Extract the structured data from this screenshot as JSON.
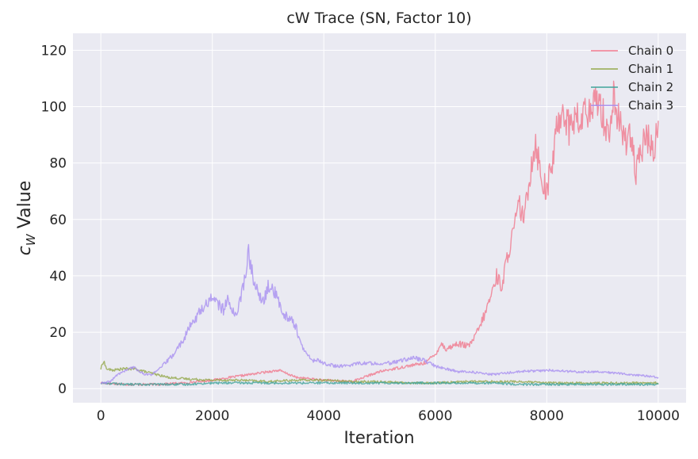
{
  "chart_data": {
    "type": "line",
    "title": "cW Trace (SN, Factor 10)",
    "xlabel": "Iteration",
    "ylabel": "c",
    "ylabel_sub": "W",
    "ylabel_rest": " Value",
    "xlim": [
      -500,
      10500
    ],
    "ylim": [
      -5,
      126
    ],
    "xticks": [
      0,
      2000,
      4000,
      6000,
      8000,
      10000
    ],
    "yticks": [
      0,
      20,
      40,
      60,
      80,
      100,
      120
    ],
    "grid": true,
    "legend_position": "top-right",
    "series": [
      {
        "name": "Chain 0",
        "color": "#f0788c",
        "points": [
          [
            0,
            2
          ],
          [
            500,
            1.5
          ],
          [
            1000,
            1.5
          ],
          [
            1500,
            2
          ],
          [
            2000,
            3
          ],
          [
            2500,
            4.5
          ],
          [
            3000,
            6
          ],
          [
            3200,
            6.5
          ],
          [
            3500,
            4
          ],
          [
            4000,
            3
          ],
          [
            4500,
            2.5
          ],
          [
            5000,
            6
          ],
          [
            5500,
            8
          ],
          [
            5800,
            9
          ],
          [
            6000,
            12
          ],
          [
            6100,
            16
          ],
          [
            6200,
            14
          ],
          [
            6400,
            16
          ],
          [
            6600,
            15
          ],
          [
            6700,
            18
          ],
          [
            6800,
            22
          ],
          [
            6900,
            27
          ],
          [
            7000,
            33
          ],
          [
            7100,
            40
          ],
          [
            7200,
            36
          ],
          [
            7300,
            48
          ],
          [
            7400,
            55
          ],
          [
            7500,
            65
          ],
          [
            7600,
            60
          ],
          [
            7700,
            77
          ],
          [
            7800,
            88
          ],
          [
            7900,
            75
          ],
          [
            8000,
            70
          ],
          [
            8100,
            80
          ],
          [
            8200,
            95
          ],
          [
            8300,
            100
          ],
          [
            8400,
            92
          ],
          [
            8500,
            97
          ],
          [
            8600,
            93
          ],
          [
            8700,
            100
          ],
          [
            8800,
            95
          ],
          [
            8900,
            105
          ],
          [
            9000,
            98
          ],
          [
            9100,
            90
          ],
          [
            9200,
            103
          ],
          [
            9300,
            94
          ],
          [
            9400,
            88
          ],
          [
            9500,
            92
          ],
          [
            9600,
            75
          ],
          [
            9700,
            85
          ],
          [
            9800,
            90
          ],
          [
            9900,
            83
          ],
          [
            10000,
            95
          ]
        ]
      },
      {
        "name": "Chain 1",
        "color": "#93a84a",
        "points": [
          [
            0,
            7
          ],
          [
            50,
            10
          ],
          [
            100,
            7
          ],
          [
            200,
            6.5
          ],
          [
            400,
            7
          ],
          [
            600,
            7
          ],
          [
            800,
            6
          ],
          [
            1000,
            5
          ],
          [
            1200,
            4
          ],
          [
            1500,
            3.5
          ],
          [
            2000,
            3
          ],
          [
            2500,
            3
          ],
          [
            3000,
            2.5
          ],
          [
            3500,
            3
          ],
          [
            4000,
            3
          ],
          [
            4500,
            2.5
          ],
          [
            5000,
            2.5
          ],
          [
            5500,
            2
          ],
          [
            6000,
            2
          ],
          [
            6500,
            2.5
          ],
          [
            7000,
            2.5
          ],
          [
            7500,
            2.5
          ],
          [
            8000,
            2
          ],
          [
            8500,
            2
          ],
          [
            9000,
            2
          ],
          [
            9500,
            2
          ],
          [
            10000,
            2
          ]
        ]
      },
      {
        "name": "Chain 2",
        "color": "#3ea39a",
        "points": [
          [
            0,
            2
          ],
          [
            500,
            1.5
          ],
          [
            1000,
            1.5
          ],
          [
            1500,
            1.5
          ],
          [
            2000,
            2
          ],
          [
            2500,
            2
          ],
          [
            3000,
            2
          ],
          [
            3500,
            2
          ],
          [
            4000,
            2
          ],
          [
            4500,
            2
          ],
          [
            5000,
            2
          ],
          [
            5500,
            2
          ],
          [
            6000,
            2
          ],
          [
            6500,
            2
          ],
          [
            7000,
            2
          ],
          [
            7500,
            1.5
          ],
          [
            8000,
            1.5
          ],
          [
            8500,
            1.5
          ],
          [
            9000,
            1.5
          ],
          [
            9500,
            1.5
          ],
          [
            10000,
            1.5
          ]
        ]
      },
      {
        "name": "Chain 3",
        "color": "#a78ef0",
        "points": [
          [
            0,
            2
          ],
          [
            100,
            2
          ],
          [
            200,
            3
          ],
          [
            300,
            5
          ],
          [
            400,
            6
          ],
          [
            500,
            7
          ],
          [
            600,
            7.5
          ],
          [
            700,
            6
          ],
          [
            800,
            5
          ],
          [
            900,
            5
          ],
          [
            1000,
            6
          ],
          [
            1100,
            8
          ],
          [
            1200,
            10
          ],
          [
            1300,
            12
          ],
          [
            1400,
            15
          ],
          [
            1500,
            18
          ],
          [
            1600,
            22
          ],
          [
            1700,
            25
          ],
          [
            1800,
            28
          ],
          [
            1900,
            30
          ],
          [
            2000,
            33
          ],
          [
            2100,
            30
          ],
          [
            2200,
            28
          ],
          [
            2300,
            32
          ],
          [
            2400,
            25
          ],
          [
            2500,
            32
          ],
          [
            2600,
            40
          ],
          [
            2650,
            49
          ],
          [
            2700,
            42
          ],
          [
            2800,
            35
          ],
          [
            2900,
            30
          ],
          [
            3000,
            36
          ],
          [
            3100,
            35
          ],
          [
            3200,
            30
          ],
          [
            3300,
            26
          ],
          [
            3400,
            25
          ],
          [
            3500,
            22
          ],
          [
            3600,
            15
          ],
          [
            3700,
            12
          ],
          [
            3800,
            10
          ],
          [
            3900,
            10
          ],
          [
            4000,
            9
          ],
          [
            4200,
            8
          ],
          [
            4400,
            8
          ],
          [
            4600,
            9
          ],
          [
            4800,
            9
          ],
          [
            5000,
            9
          ],
          [
            5200,
            9
          ],
          [
            5400,
            10
          ],
          [
            5600,
            11
          ],
          [
            5800,
            10
          ],
          [
            6000,
            8
          ],
          [
            6200,
            7
          ],
          [
            6400,
            6
          ],
          [
            6600,
            6
          ],
          [
            6800,
            5.5
          ],
          [
            7000,
            5
          ],
          [
            7500,
            6
          ],
          [
            8000,
            6.5
          ],
          [
            8500,
            6
          ],
          [
            9000,
            6
          ],
          [
            9500,
            5
          ],
          [
            10000,
            4
          ]
        ]
      }
    ]
  }
}
